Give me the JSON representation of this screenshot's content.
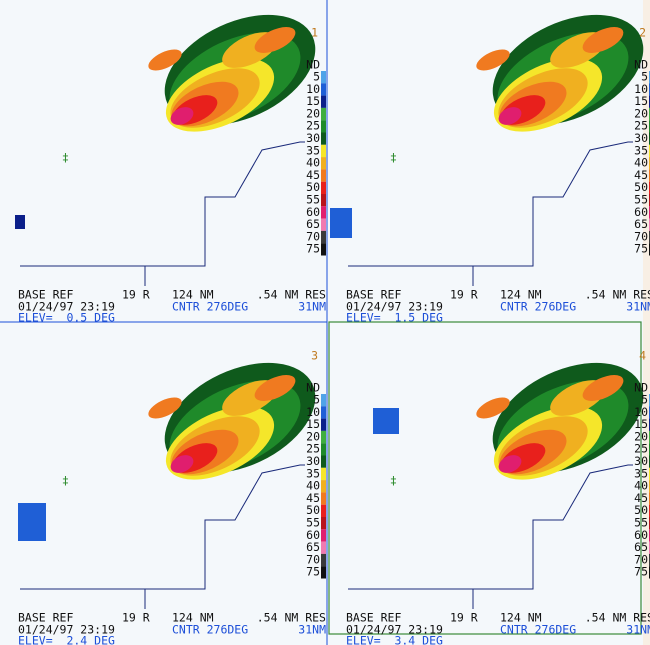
{
  "legend": {
    "title": "ND",
    "levels": [
      {
        "label": "5",
        "color": "#4fa3e8"
      },
      {
        "label": "10",
        "color": "#1f5fd6"
      },
      {
        "label": "15",
        "color": "#0b1f8a"
      },
      {
        "label": "20",
        "color": "#3fae3f"
      },
      {
        "label": "25",
        "color": "#1f8a2a"
      },
      {
        "label": "30",
        "color": "#0f5a1c"
      },
      {
        "label": "35",
        "color": "#f5e62a"
      },
      {
        "label": "40",
        "color": "#f0b020"
      },
      {
        "label": "45",
        "color": "#f07a20"
      },
      {
        "label": "50",
        "color": "#e8201c"
      },
      {
        "label": "55",
        "color": "#b8141c"
      },
      {
        "label": "60",
        "color": "#e01e6e"
      },
      {
        "label": "65",
        "color": "#f07ab0"
      },
      {
        "label": "70",
        "color": "#3a3a3a"
      },
      {
        "label": "75",
        "color": "#111111"
      }
    ]
  },
  "panels": [
    {
      "number": "1",
      "product": "BASE REF",
      "site": "19 R",
      "range": "124 NM",
      "res": ".54 NM RES",
      "datetime": "01/24/97 23:19",
      "center": "CNTR 276DEG",
      "dist": "31NM",
      "elev": "ELEV=  0.5 DEG"
    },
    {
      "number": "2",
      "product": "BASE REF",
      "site": "19 R",
      "range": "124 NM",
      "res": ".54 NM RES",
      "datetime": "01/24/97 23:19",
      "center": "CNTR 276DEG",
      "dist": "31NM",
      "elev": "ELEV=  1.5 DEG"
    },
    {
      "number": "3",
      "product": "BASE REF",
      "site": "19 R",
      "range": "124 NM",
      "res": ".54 NM RES",
      "datetime": "01/24/97 23:19",
      "center": "CNTR 276DEG",
      "dist": "31NM",
      "elev": "ELEV=  2.4 DEG"
    },
    {
      "number": "4",
      "product": "BASE REF",
      "site": "19 R",
      "range": "124 NM",
      "res": ".54 NM RES",
      "datetime": "01/24/97 23:19",
      "center": "CNTR 276DEG",
      "dist": "31NM",
      "elev": "ELEV=  3.4 DEG"
    }
  ]
}
